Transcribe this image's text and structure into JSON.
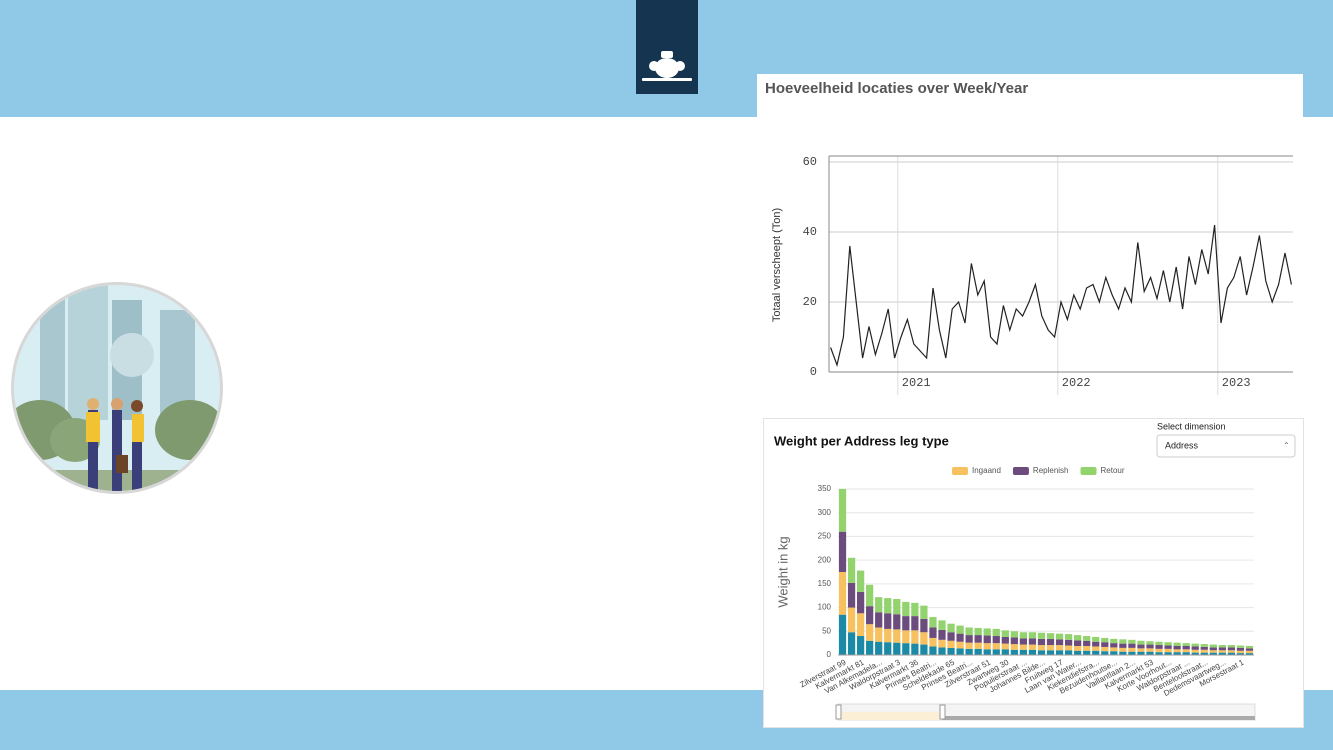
{
  "chart_data": [
    {
      "type": "line",
      "title": "Hoeveelheid locaties over Week/Year",
      "y_label": "Totaal verscheept (Ton)",
      "color": "#222222",
      "grid": true,
      "x": [
        2020.58,
        2020.62,
        2020.66,
        2020.7,
        2020.74,
        2020.78,
        2020.82,
        2020.86,
        2020.9,
        2020.94,
        2020.98,
        2021.02,
        2021.06,
        2021.1,
        2021.14,
        2021.18,
        2021.22,
        2021.26,
        2021.3,
        2021.34,
        2021.38,
        2021.42,
        2021.46,
        2021.5,
        2021.54,
        2021.58,
        2021.62,
        2021.66,
        2021.7,
        2021.74,
        2021.78,
        2021.82,
        2021.86,
        2021.9,
        2021.94,
        2021.98,
        2022.02,
        2022.06,
        2022.1,
        2022.14,
        2022.18,
        2022.22,
        2022.26,
        2022.3,
        2022.34,
        2022.38,
        2022.42,
        2022.46,
        2022.5,
        2022.54,
        2022.58,
        2022.62,
        2022.66,
        2022.7,
        2022.74,
        2022.78,
        2022.82,
        2022.86,
        2022.9,
        2022.94,
        2022.98,
        2023.02,
        2023.06,
        2023.1,
        2023.14,
        2023.18,
        2023.22,
        2023.26,
        2023.3,
        2023.34,
        2023.38,
        2023.42,
        2023.46
      ],
      "values": [
        7,
        2,
        10,
        36,
        20,
        4,
        13,
        5,
        11,
        18,
        4,
        10,
        15,
        8,
        6,
        4,
        24,
        12,
        4,
        18,
        20,
        14,
        31,
        22,
        26,
        10,
        8,
        19,
        12,
        18,
        16,
        20,
        25,
        16,
        12,
        10,
        20,
        15,
        22,
        18,
        24,
        25,
        20,
        27,
        22,
        18,
        24,
        20,
        37,
        23,
        27,
        21,
        29,
        20,
        30,
        18,
        33,
        25,
        35,
        28,
        42,
        14,
        24,
        27,
        33,
        22,
        30,
        39,
        26,
        20,
        25,
        34,
        25
      ],
      "xlim": [
        2020.57,
        2023.47
      ],
      "xticks": [
        2021,
        2022,
        2023
      ],
      "ylim": [
        0,
        60
      ],
      "yticks": [
        0,
        20,
        40,
        60
      ]
    },
    {
      "type": "bar",
      "stacked": true,
      "title": "Weight per Address leg type",
      "select_label": "Select dimension",
      "select_value": "Address",
      "y_label": "Weight in kg",
      "grid": true,
      "legend": "top",
      "categories": [
        "Zilverstraat 99",
        null,
        "Kalvermarkt 81",
        null,
        "Van Alkemadela...",
        null,
        "Waldorpstraat 3",
        null,
        "Kalvermarkt 36",
        null,
        "Prinses Beatri...",
        null,
        "Scheldekade 65",
        null,
        "Prinses Beatri...",
        null,
        "Zilverstraat 51",
        null,
        "Zwartweg 30",
        null,
        "Populierstraat ...",
        null,
        "Johannes Bilde...",
        null,
        "Fruitweg 17",
        null,
        "Laan van Water...",
        null,
        "Kiekendiefstra...",
        null,
        "Bezuidenhoutse...",
        null,
        "Vaillantlaan 2...",
        null,
        "Kalvermarkt 53",
        null,
        "Korte Voorhout...",
        null,
        "Waldorpstraat ...",
        null,
        "Benteloolstraat...",
        null,
        "Dedemsvaartweg...",
        null,
        "Morsestraat 1",
        null
      ],
      "series": [
        {
          "name": null,
          "color": "#1b8aa6",
          "values": [
            85,
            48,
            40,
            30,
            28,
            27,
            26,
            25,
            24,
            22,
            18,
            16,
            15,
            14,
            13,
            13,
            12,
            12,
            12,
            11,
            11,
            11,
            10,
            10,
            10,
            10,
            9,
            9,
            9,
            8,
            8,
            7,
            7,
            7,
            7,
            6,
            6,
            6,
            6,
            5,
            5,
            5,
            5,
            5,
            4,
            4
          ]
        },
        {
          "name": "Ingaand",
          "color": "#f6c15e",
          "values": [
            90,
            52,
            48,
            35,
            30,
            28,
            28,
            27,
            28,
            26,
            18,
            16,
            15,
            14,
            13,
            13,
            13,
            13,
            12,
            12,
            11,
            11,
            11,
            11,
            11,
            10,
            10,
            10,
            9,
            9,
            8,
            8,
            8,
            7,
            7,
            7,
            7,
            6,
            6,
            6,
            6,
            5,
            5,
            5,
            5,
            5
          ]
        },
        {
          "name": "Replenish",
          "color": "#6c4b7d",
          "values": [
            85,
            52,
            45,
            38,
            32,
            33,
            32,
            30,
            30,
            28,
            22,
            21,
            18,
            17,
            16,
            16,
            16,
            15,
            14,
            14,
            13,
            13,
            13,
            13,
            12,
            12,
            12,
            11,
            10,
            10,
            9,
            9,
            9,
            8,
            8,
            8,
            7,
            7,
            7,
            7,
            6,
            6,
            6,
            6,
            6,
            5
          ]
        },
        {
          "name": "Retour",
          "color": "#92d36e",
          "values": [
            90,
            53,
            45,
            45,
            32,
            32,
            32,
            30,
            28,
            28,
            22,
            20,
            18,
            17,
            16,
            15,
            15,
            15,
            14,
            13,
            13,
            13,
            13,
            12,
            12,
            12,
            11,
            10,
            10,
            9,
            9,
            9,
            8,
            8,
            7,
            7,
            7,
            7,
            6,
            6,
            6,
            6,
            5,
            5,
            5,
            5
          ]
        }
      ],
      "ylim": [
        0,
        350
      ],
      "yticks": [
        0,
        50,
        100,
        150,
        200,
        250,
        300,
        350
      ]
    }
  ]
}
